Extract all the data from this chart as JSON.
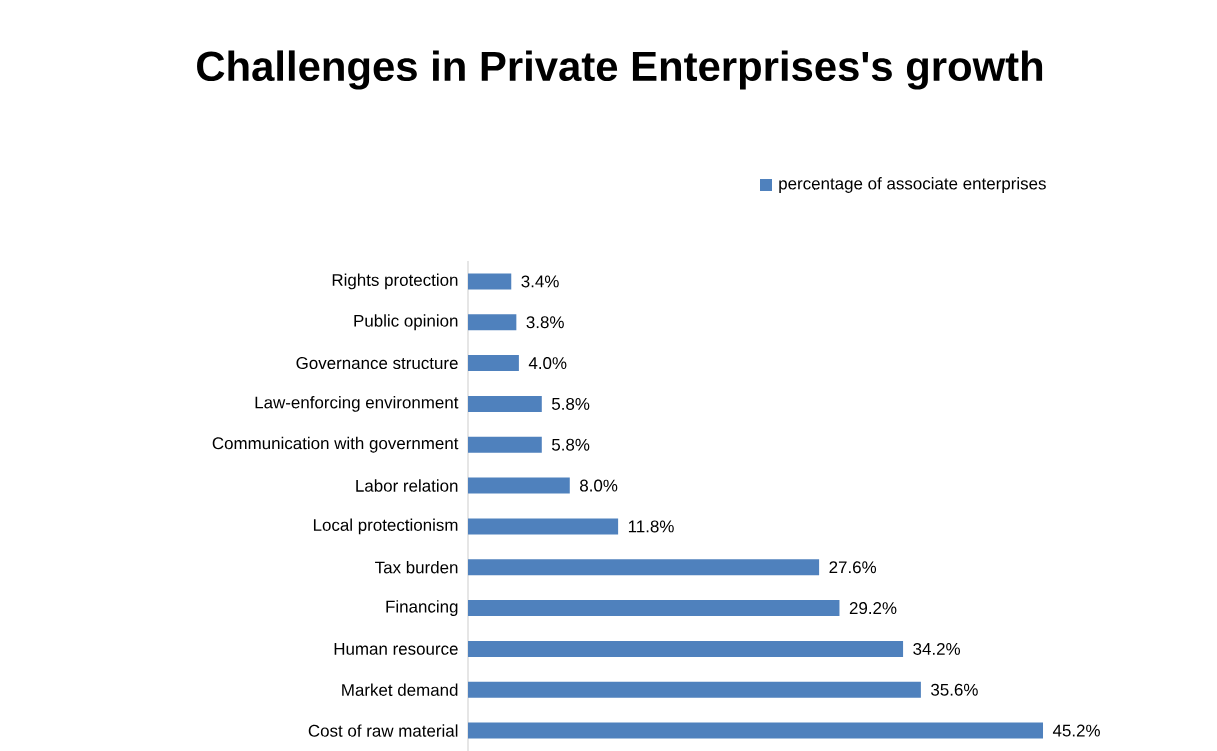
{
  "chart_data": {
    "type": "bar",
    "orientation": "horizontal",
    "title": "Challenges in Private Enterprises's growth",
    "categories": [
      "Rights protection",
      "Public opinion",
      "Governance structure",
      "Law-enforcing environment",
      "Communication with government",
      "Labor relation",
      "Local protectionism",
      "Tax burden",
      "Financing",
      "Human resource",
      "Market demand",
      "Cost of raw material"
    ],
    "series": [
      {
        "name": "percentage of associate enterprises",
        "color": "#4f81bd",
        "values": [
          3.4,
          3.8,
          4.0,
          5.8,
          5.8,
          8.0,
          11.8,
          27.6,
          29.2,
          34.2,
          35.6,
          45.2
        ],
        "value_labels": [
          "3.4%",
          "3.8%",
          "4.0%",
          "5.8%",
          "5.8%",
          "8.0%",
          "11.8%",
          "27.6%",
          "29.2%",
          "34.2%",
          "35.6%",
          "45.2%"
        ]
      }
    ],
    "legend": "top right",
    "grid": false
  }
}
